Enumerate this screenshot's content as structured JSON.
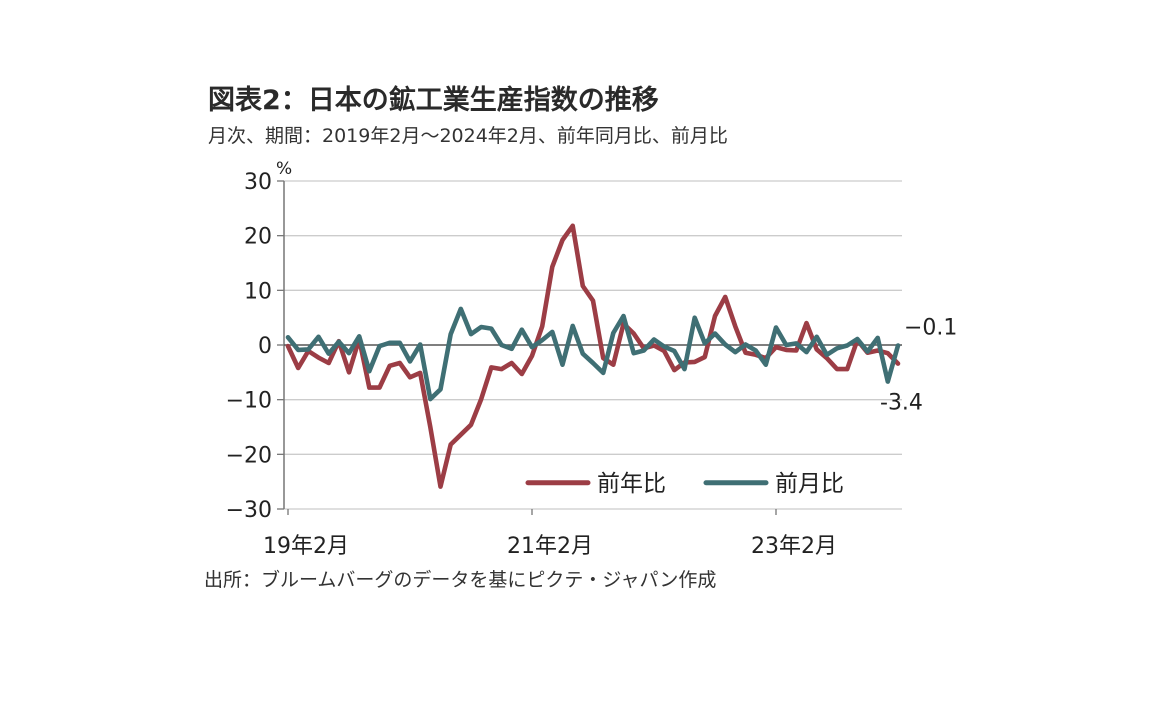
{
  "title": "図表2：日本の鉱工業生産指数の推移",
  "subtitle": "月次、期間：2019年2月～2024年2月、前年同月比、前月比",
  "source": "出所：ブルームバーグのデータを基にピクテ・ジャパン作成",
  "colors": {
    "yoy": "#9c3d45",
    "mom": "#3f6f74",
    "axis": "#777777",
    "grid": "#cccccc"
  },
  "chart_data": {
    "type": "line",
    "unit_label": "%",
    "ylim": [
      -30,
      30
    ],
    "yticks": [
      30,
      20,
      10,
      0,
      -10,
      -20,
      -30
    ],
    "ytick_labels": [
      "30",
      "20",
      "10",
      "0",
      "−10",
      "−20",
      "−30"
    ],
    "grid": true,
    "legend_position": "bottom-right",
    "x": [
      "2019-02",
      "2019-03",
      "2019-04",
      "2019-05",
      "2019-06",
      "2019-07",
      "2019-08",
      "2019-09",
      "2019-10",
      "2019-11",
      "2019-12",
      "2020-01",
      "2020-02",
      "2020-03",
      "2020-04",
      "2020-05",
      "2020-06",
      "2020-07",
      "2020-08",
      "2020-09",
      "2020-10",
      "2020-11",
      "2020-12",
      "2021-01",
      "2021-02",
      "2021-03",
      "2021-04",
      "2021-05",
      "2021-06",
      "2021-07",
      "2021-08",
      "2021-09",
      "2021-10",
      "2021-11",
      "2021-12",
      "2022-01",
      "2022-02",
      "2022-03",
      "2022-04",
      "2022-05",
      "2022-06",
      "2022-07",
      "2022-08",
      "2022-09",
      "2022-10",
      "2022-11",
      "2022-12",
      "2023-01",
      "2023-02",
      "2023-03",
      "2023-04",
      "2023-05",
      "2023-06",
      "2023-07",
      "2023-08",
      "2023-09",
      "2023-10",
      "2023-11",
      "2023-12",
      "2024-01",
      "2024-02"
    ],
    "xtick_labels": [
      {
        "x": "2019-02",
        "label": "19年2月"
      },
      {
        "x": "2021-02",
        "label": "21年2月"
      },
      {
        "x": "2023-02",
        "label": "23年2月"
      }
    ],
    "series": [
      {
        "name": "前年比",
        "values": [
          -0.2,
          -4.2,
          -1.1,
          -2.3,
          -3.3,
          0.7,
          -5.0,
          1.1,
          -7.8,
          -7.8,
          -3.8,
          -3.3,
          -5.9,
          -5.1,
          -15.0,
          -25.9,
          -18.2,
          -16.4,
          -14.6,
          -9.9,
          -4.1,
          -4.4,
          -3.3,
          -5.3,
          -2.0,
          3.4,
          14.3,
          19.2,
          21.8,
          10.8,
          8.1,
          -2.4,
          -3.6,
          3.9,
          2.1,
          -0.6,
          -0.1,
          -1.1,
          -4.6,
          -3.2,
          -3.1,
          -2.2,
          5.3,
          8.8,
          3.4,
          -1.4,
          -1.8,
          -2.4,
          -0.4,
          -0.9,
          -1.0,
          4.0,
          -0.8,
          -2.4,
          -4.4,
          -4.4,
          0.9,
          -1.4,
          -1.0,
          -1.5,
          -3.4
        ],
        "last_label": "-3.4"
      },
      {
        "name": "前月比",
        "values": [
          1.4,
          -0.9,
          -0.8,
          1.5,
          -1.6,
          0.6,
          -1.5,
          1.6,
          -4.8,
          -0.2,
          0.4,
          0.4,
          -3.0,
          0.1,
          -9.9,
          -8.1,
          2.0,
          6.6,
          2.0,
          3.3,
          3.0,
          0.0,
          -0.7,
          2.8,
          -0.4,
          0.9,
          2.4,
          -3.6,
          3.5,
          -1.6,
          -3.3,
          -5.1,
          2.2,
          5.3,
          -1.5,
          -1.0,
          1.0,
          -0.3,
          -1.1,
          -4.4,
          5.0,
          0.3,
          2.1,
          0.1,
          -1.3,
          0.1,
          -1.0,
          -3.6,
          3.2,
          0.0,
          0.3,
          -1.3,
          1.5,
          -1.8,
          -0.6,
          -0.1,
          1.1,
          -1.2,
          1.3,
          -6.7,
          -0.1
        ],
        "last_label": "−0.1"
      }
    ]
  }
}
